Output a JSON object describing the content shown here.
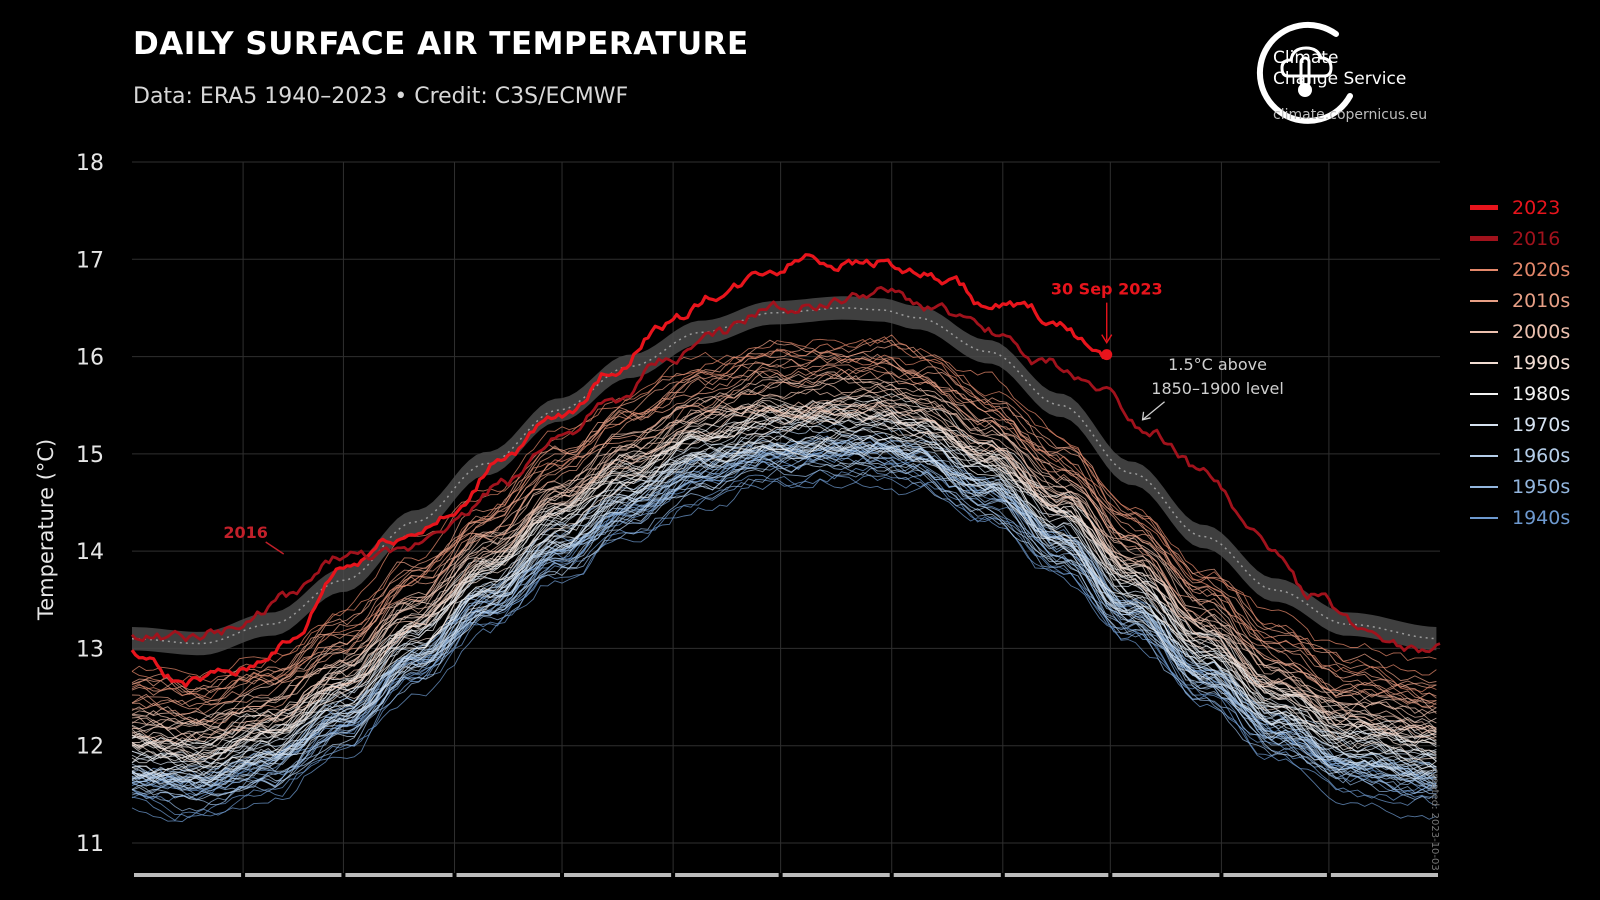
{
  "header": {
    "title": "DAILY SURFACE AIR TEMPERATURE",
    "subtitle": "Data: ERA5 1940–2023 • Credit: C3S/ECMWF"
  },
  "brand": {
    "name_line1": "Climate",
    "name_line2": "Change Service",
    "url": "climate.copernicus.eu",
    "icon": "cloud-thermometer-logo-icon"
  },
  "footer": {
    "created": "created: 2023-10-03"
  },
  "colors": {
    "background": "#000000",
    "y2023": "#e8141c",
    "y2016": "#a1121c",
    "band": "#4a4a4a",
    "annotation": "#cfcfcf"
  },
  "chart_data": {
    "type": "line",
    "title": "DAILY SURFACE AIR TEMPERATURE",
    "subtitle": "Data: ERA5 1940–2023 • Credit: C3S/ECMWF",
    "xlabel": "",
    "ylabel": "Temperature (°C)",
    "ylim": [
      11,
      18
    ],
    "yticks": [
      11,
      12,
      13,
      14,
      15,
      16,
      17,
      18
    ],
    "xlim": [
      1,
      366
    ],
    "grid": true,
    "legend_position": "right",
    "legend": [
      {
        "label": "2023",
        "color": "#e8141c",
        "weight": "thick"
      },
      {
        "label": "2016",
        "color": "#a1121c",
        "weight": "thick"
      },
      {
        "label": "2020s",
        "color": "#e3876a",
        "weight": "thin"
      },
      {
        "label": "2010s",
        "color": "#e79f85",
        "weight": "thin"
      },
      {
        "label": "2000s",
        "color": "#ecc0ae",
        "weight": "thin"
      },
      {
        "label": "1990s",
        "color": "#f1dcd2",
        "weight": "thin"
      },
      {
        "label": "1980s",
        "color": "#f2f2f2",
        "weight": "thin"
      },
      {
        "label": "1970s",
        "color": "#d5e1ef",
        "weight": "thin"
      },
      {
        "label": "1960s",
        "color": "#b4cde8",
        "weight": "thin"
      },
      {
        "label": "1950s",
        "color": "#93b6de",
        "weight": "thin"
      },
      {
        "label": "1940s",
        "color": "#6d99cf",
        "weight": "thin"
      }
    ],
    "series": [
      {
        "name": "2023",
        "color": "#e8141c",
        "x": [
          1,
          15,
          30,
          45,
          60,
          75,
          90,
          105,
          120,
          135,
          150,
          165,
          180,
          190,
          200,
          210,
          220,
          230,
          240,
          250,
          260,
          273
        ],
        "y": [
          12.95,
          12.65,
          12.75,
          13.05,
          13.85,
          14.15,
          14.35,
          15.0,
          15.35,
          15.85,
          16.35,
          16.65,
          16.9,
          17.05,
          16.95,
          17.0,
          16.85,
          16.75,
          16.5,
          16.5,
          16.3,
          16.02
        ]
      },
      {
        "name": "2016",
        "color": "#a1121c",
        "x": [
          1,
          15,
          30,
          45,
          60,
          75,
          90,
          105,
          120,
          135,
          150,
          165,
          180,
          195,
          210,
          225,
          240,
          255,
          270,
          285,
          300,
          315,
          330,
          345,
          360,
          366
        ],
        "y": [
          13.15,
          13.1,
          13.2,
          13.55,
          13.95,
          13.95,
          14.3,
          14.7,
          15.2,
          15.5,
          15.95,
          16.25,
          16.5,
          16.55,
          16.65,
          16.5,
          16.25,
          15.95,
          15.7,
          15.25,
          14.8,
          14.15,
          13.55,
          13.2,
          13.0,
          13.05
        ]
      }
    ],
    "decades": [
      "1940s",
      "1950s",
      "1960s",
      "1970s",
      "1980s",
      "1990s",
      "2000s",
      "2010s",
      "2020s"
    ],
    "decade_offsets": [
      -0.75,
      -0.68,
      -0.62,
      -0.5,
      -0.38,
      -0.22,
      -0.05,
      0.18,
      0.35
    ],
    "baseline_climatology": {
      "x": [
        1,
        20,
        40,
        60,
        80,
        100,
        120,
        140,
        160,
        180,
        200,
        210,
        220,
        240,
        260,
        280,
        300,
        320,
        340,
        366
      ],
      "y": [
        12.3,
        12.25,
        12.45,
        12.9,
        13.5,
        14.1,
        14.65,
        15.1,
        15.45,
        15.65,
        15.7,
        15.68,
        15.6,
        15.25,
        14.7,
        14.0,
        13.35,
        12.8,
        12.45,
        12.3
      ]
    },
    "threshold_band": {
      "label": "1.5°C above 1850–1900 level",
      "x": [
        1,
        20,
        40,
        60,
        80,
        100,
        120,
        140,
        160,
        180,
        200,
        210,
        220,
        240,
        260,
        280,
        300,
        320,
        340,
        366
      ],
      "y": [
        13.1,
        13.05,
        13.25,
        13.7,
        14.3,
        14.9,
        15.45,
        15.9,
        16.25,
        16.45,
        16.5,
        16.48,
        16.4,
        16.05,
        15.5,
        14.8,
        14.15,
        13.6,
        13.25,
        13.1
      ],
      "half_width": 0.12
    },
    "annotations": [
      {
        "text": "30 Sep 2023",
        "x": 273,
        "y": 16.02,
        "color": "#e8141c"
      },
      {
        "text": "2016",
        "x": 45,
        "y": 13.95,
        "color": "#c2202a"
      },
      {
        "text_line1": "1.5°C above",
        "text_line2": "1850–1900 level",
        "x": 283,
        "y": 15.35,
        "color": "#cfcfcf"
      }
    ]
  }
}
